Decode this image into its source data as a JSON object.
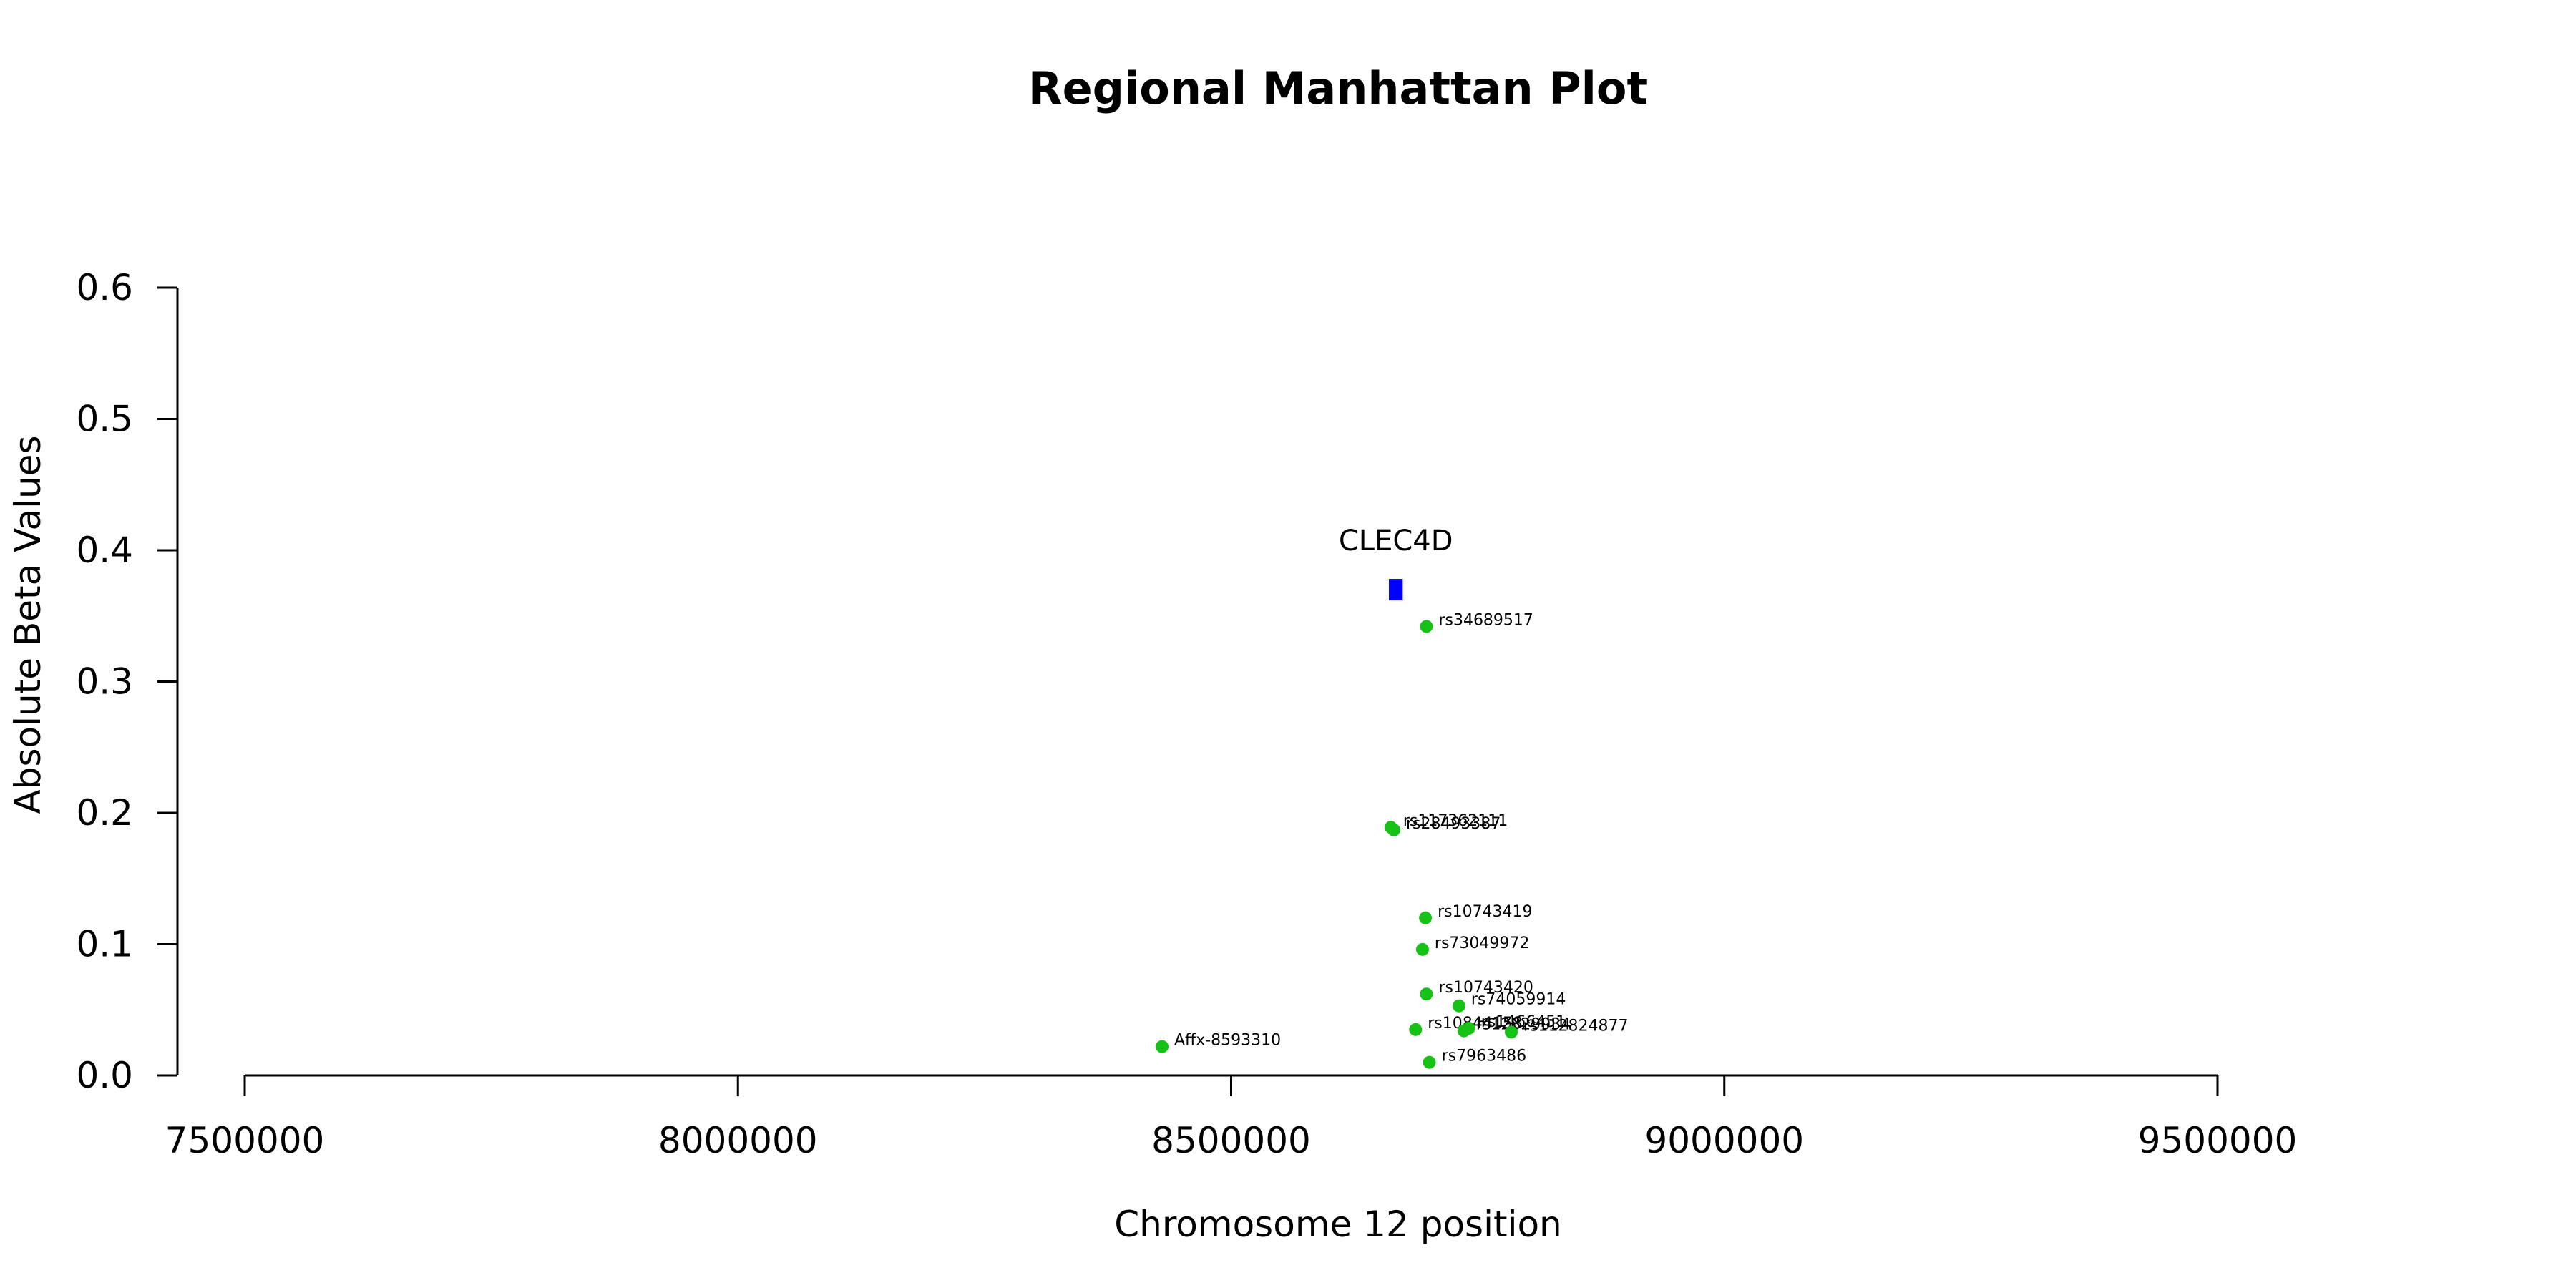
{
  "chart_data": {
    "type": "scatter",
    "title": "Regional Manhattan Plot",
    "xlabel": "Chromosome 12 position",
    "ylabel": "Absolute Beta Values",
    "xlim": [
      7500000,
      9500000
    ],
    "ylim": [
      0,
      0.6
    ],
    "x_ticks": [
      {
        "value": 7500000,
        "label": "7500000"
      },
      {
        "value": 8000000,
        "label": "8000000"
      },
      {
        "value": 8500000,
        "label": "8500000"
      },
      {
        "value": 9000000,
        "label": "9000000"
      },
      {
        "value": 9500000,
        "label": "9500000"
      }
    ],
    "y_ticks": [
      {
        "value": 0.0,
        "label": "0.0"
      },
      {
        "value": 0.1,
        "label": "0.1"
      },
      {
        "value": 0.2,
        "label": "0.2"
      },
      {
        "value": 0.3,
        "label": "0.3"
      },
      {
        "value": 0.4,
        "label": "0.4"
      },
      {
        "value": 0.5,
        "label": "0.5"
      },
      {
        "value": 0.6,
        "label": "0.6"
      }
    ],
    "grid": false,
    "point_color": "#16c216",
    "gene_color": "#0000ff",
    "genes": [
      {
        "name": "CLEC4D",
        "start": 8660000,
        "end": 8674000,
        "y": 0.37
      }
    ],
    "points": [
      {
        "label": "rs34689517",
        "x": 8698000,
        "y": 0.342
      },
      {
        "label": "rs117362111",
        "x": 8662000,
        "y": 0.189
      },
      {
        "label": "rs28493387",
        "x": 8665000,
        "y": 0.187
      },
      {
        "label": "rs10743419",
        "x": 8697000,
        "y": 0.12
      },
      {
        "label": "rs73049972",
        "x": 8694000,
        "y": 0.096
      },
      {
        "label": "rs10743420",
        "x": 8698000,
        "y": 0.062
      },
      {
        "label": "rs74059914",
        "x": 8731000,
        "y": 0.053
      },
      {
        "label": "rs10844158",
        "x": 8687000,
        "y": 0.035
      },
      {
        "label": "rs12829934",
        "x": 8736000,
        "y": 0.034
      },
      {
        "label": "rs1466451",
        "x": 8741000,
        "y": 0.036
      },
      {
        "label": "rs112824877",
        "x": 8784000,
        "y": 0.033
      },
      {
        "label": "Affx-8593310",
        "x": 8430000,
        "y": 0.022
      },
      {
        "label": "rs7963486",
        "x": 8701000,
        "y": 0.01
      }
    ]
  }
}
